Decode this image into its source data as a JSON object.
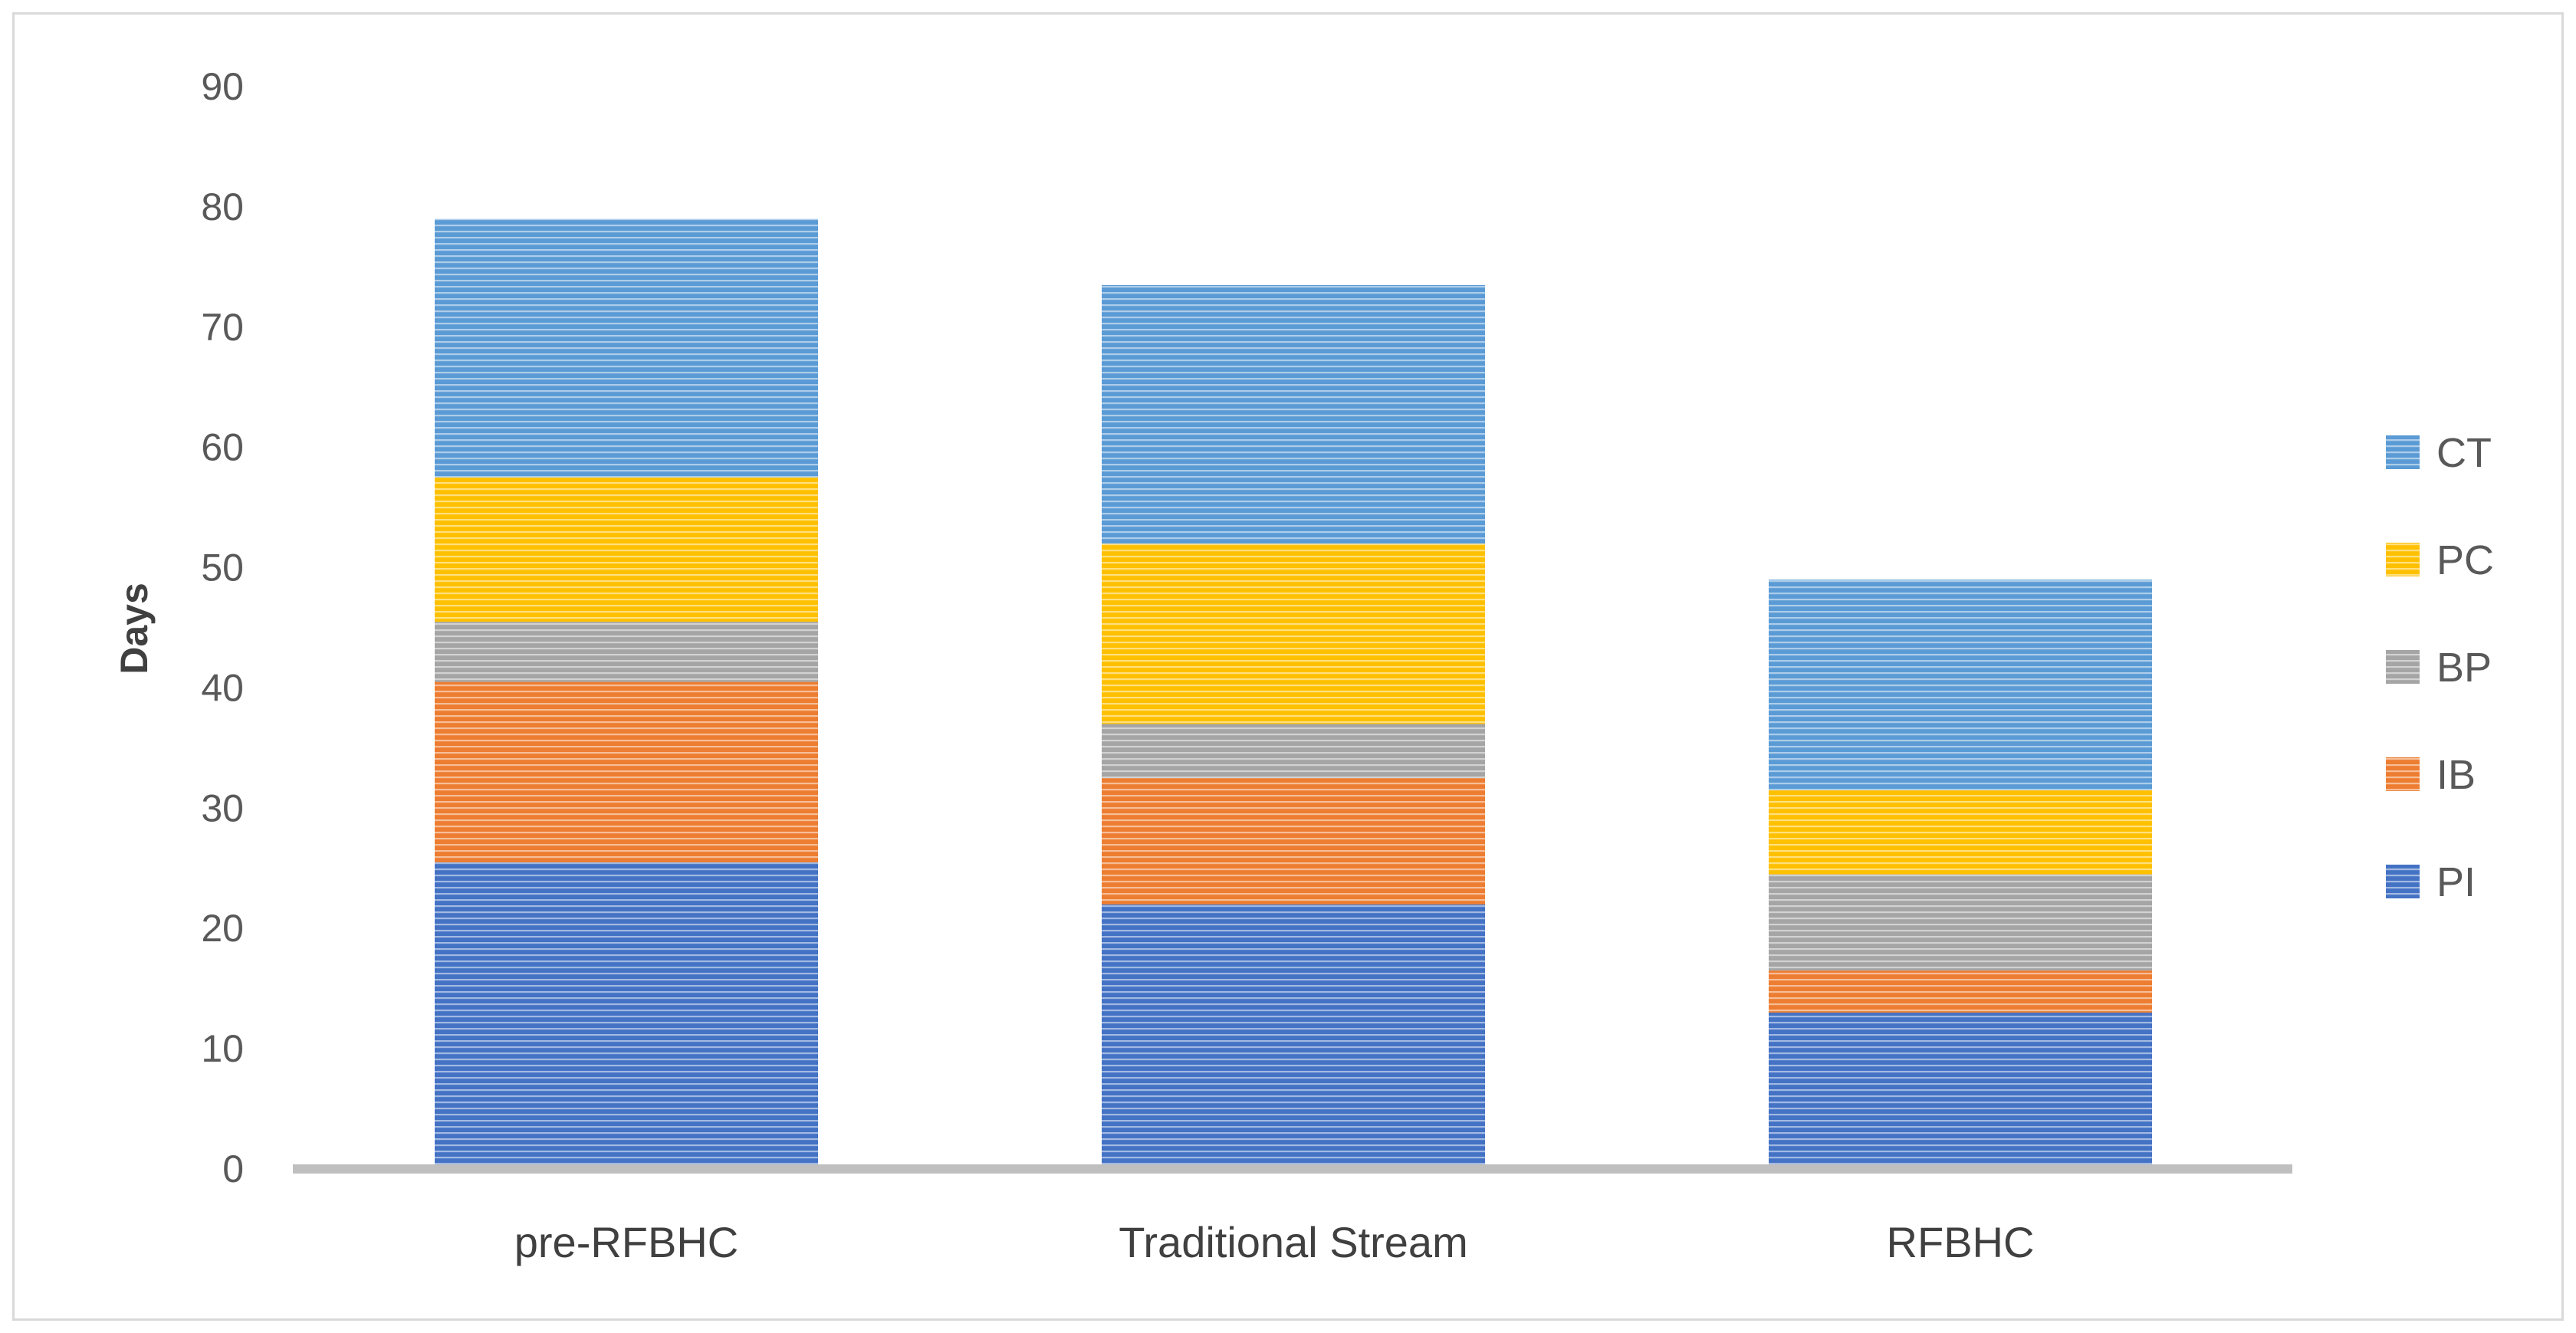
{
  "chart_data": {
    "type": "bar",
    "stacked": true,
    "title": "",
    "xlabel": "",
    "ylabel": "Days",
    "ylim": [
      0,
      90
    ],
    "yticks": [
      0,
      10,
      20,
      30,
      40,
      50,
      60,
      70,
      80,
      90
    ],
    "grid": false,
    "legend_position": "right",
    "categories": [
      "pre-RFBHC",
      "Traditional Stream",
      "RFBHC"
    ],
    "series": [
      {
        "name": "PI",
        "color": "#4472c4",
        "values": [
          25.5,
          22,
          13
        ]
      },
      {
        "name": "IB",
        "color": "#ed7d31",
        "values": [
          15,
          10.5,
          3.5
        ]
      },
      {
        "name": "BP",
        "color": "#a5a5a5",
        "values": [
          5,
          4.5,
          8
        ]
      },
      {
        "name": "PC",
        "color": "#ffc000",
        "values": [
          12,
          15,
          7
        ]
      },
      {
        "name": "CT",
        "color": "#5b9bd5",
        "values": [
          21.5,
          21.5,
          17.5
        ]
      }
    ]
  }
}
